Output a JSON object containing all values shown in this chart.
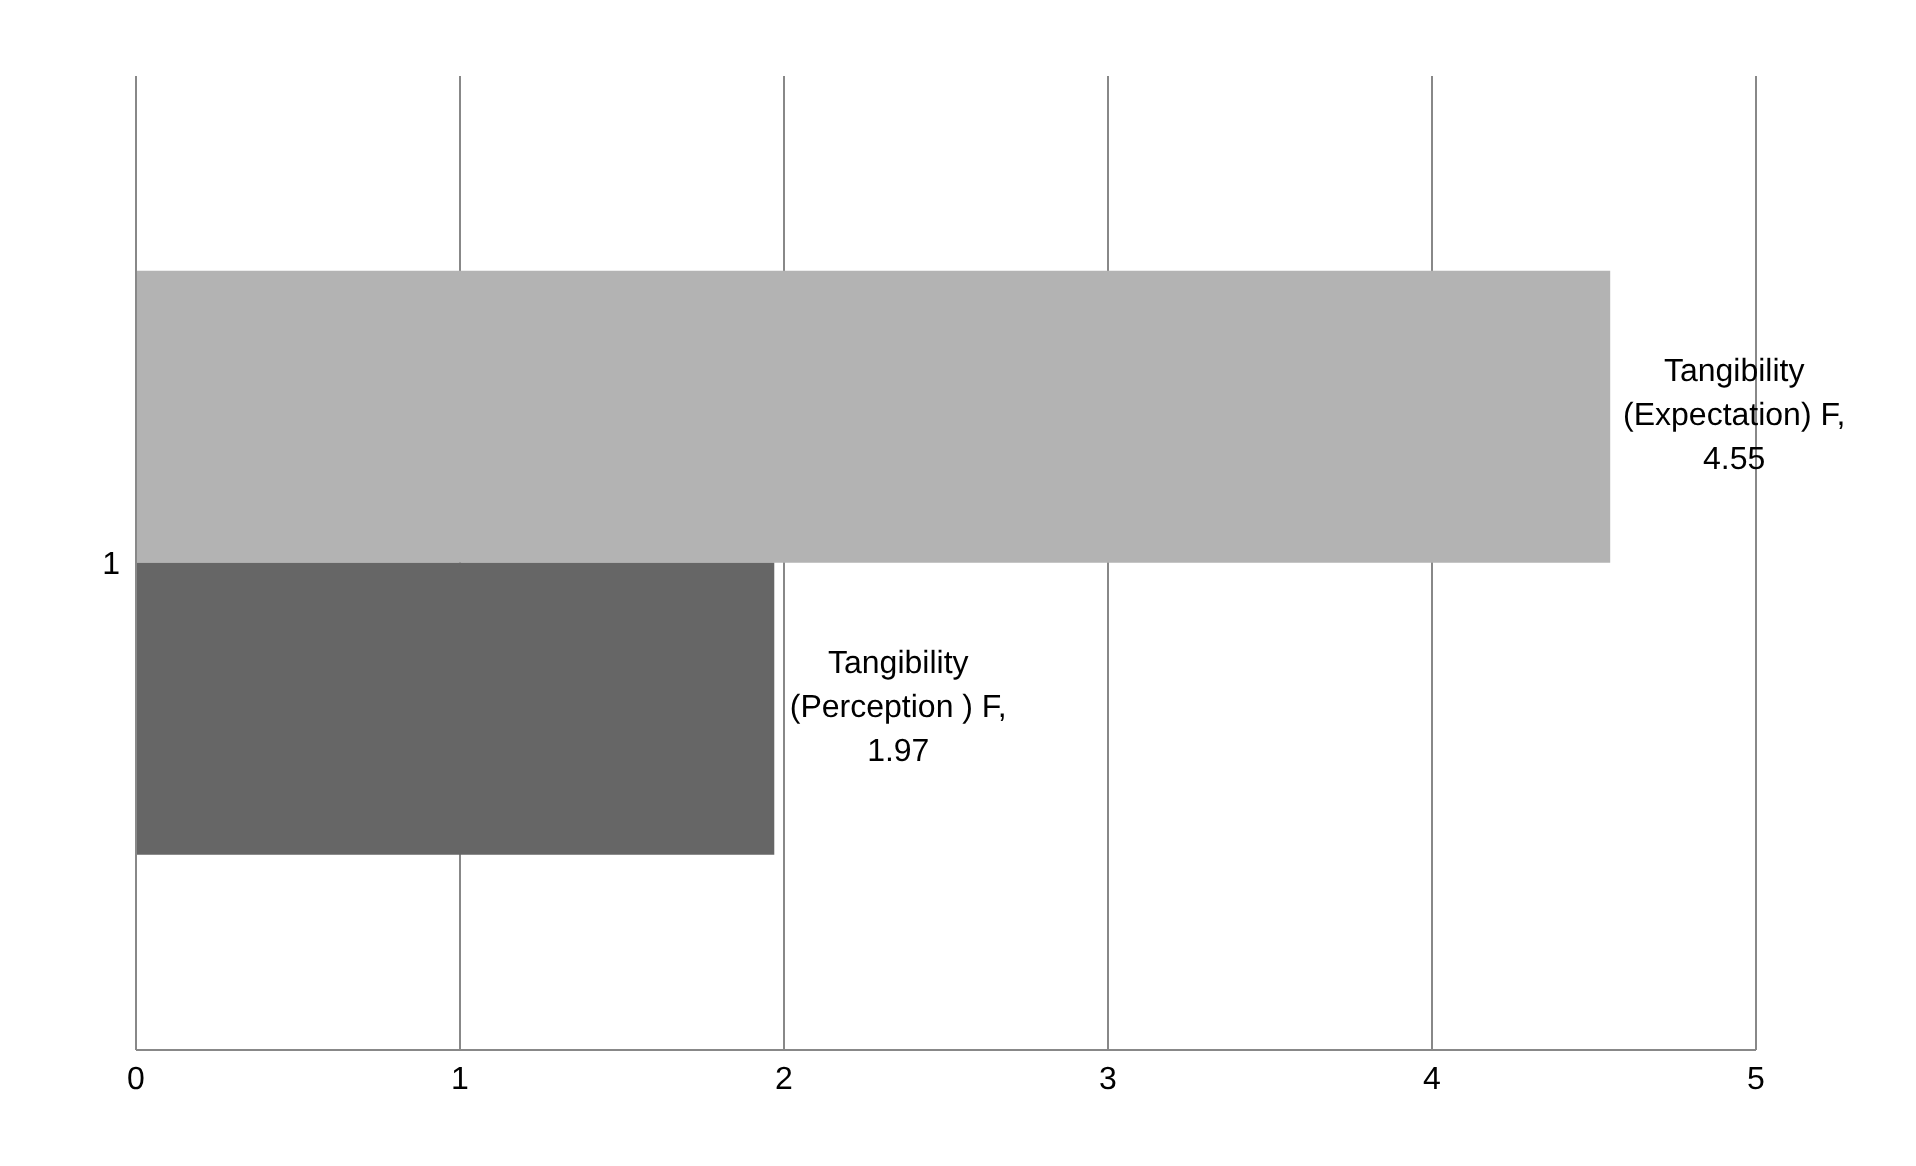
{
  "chart_data": {
    "type": "bar",
    "orientation": "horizontal",
    "categories": [
      "1"
    ],
    "series": [
      {
        "color": "#b3b3b3",
        "values": [
          4.55
        ],
        "value_labels": [
          "Tangibility (Expectation) F, 4.55"
        ]
      },
      {
        "color": "#666666",
        "values": [
          1.97
        ],
        "value_labels": [
          "Tangibility (Perception ) F, 1.97"
        ]
      }
    ],
    "xlim": [
      0,
      5
    ],
    "xticks": [
      0,
      1,
      2,
      3,
      4,
      5
    ],
    "grid": "x",
    "legend": false
  }
}
